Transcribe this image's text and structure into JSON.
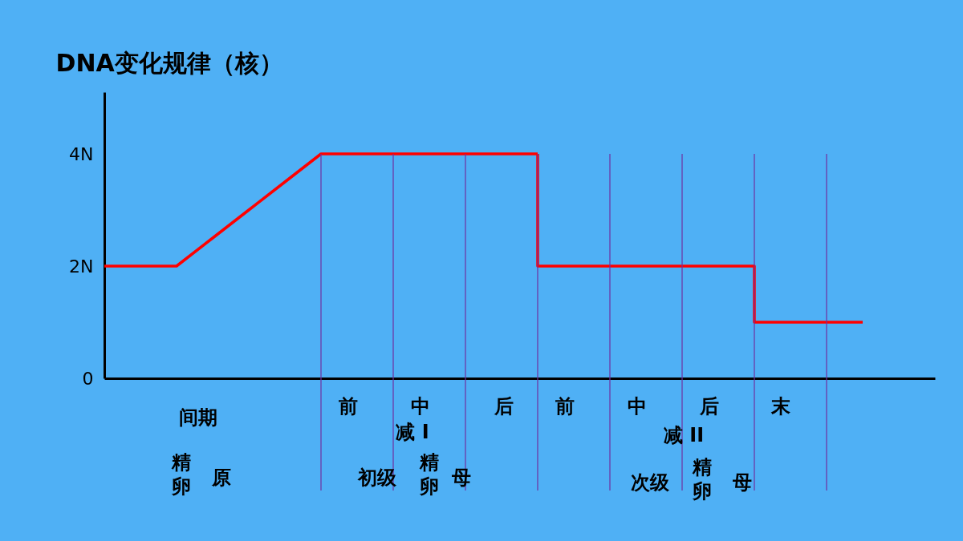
{
  "chart_data": {
    "type": "line",
    "title": "DNA变化规律（核）",
    "categories": [
      null,
      null,
      null,
      null,
      null,
      null,
      null,
      null,
      null,
      null,
      null,
      null,
      null,
      null,
      null,
      null,
      null,
      null,
      null,
      null,
      null,
      null,
      null,
      null
    ],
    "series": [
      {
        "color": "#ff0000",
        "values": [
          2,
          2,
          2,
          2.5,
          3,
          3.5,
          4,
          4,
          4,
          4,
          4,
          4,
          4,
          null,
          null,
          null,
          null,
          null,
          null,
          null,
          null,
          null,
          null,
          null
        ]
      },
      {
        "type": "step",
        "color": "#ff0000",
        "values": [
          null,
          null,
          null,
          null,
          null,
          null,
          null,
          null,
          null,
          null,
          null,
          null,
          4,
          2,
          2,
          2,
          2,
          2,
          2,
          1,
          1,
          1,
          null,
          null
        ]
      }
    ],
    "ylim": [
      0,
      5.1
    ],
    "yticks": [
      0,
      {
        "value": 2,
        "label": "2N"
      },
      {
        "value": 4,
        "label": "4N"
      }
    ],
    "tick_labels": "y",
    "grid": "x",
    "marker": "none",
    "line_style": "solid",
    "annotations": [
      "间期",
      "精",
      "卵",
      "原",
      "前",
      "中",
      "后",
      "减 I",
      "初级",
      "精",
      "卵",
      "母",
      "前",
      "中",
      "后",
      "末",
      "减 II",
      "次级",
      "精",
      "卵",
      "母"
    ]
  }
}
